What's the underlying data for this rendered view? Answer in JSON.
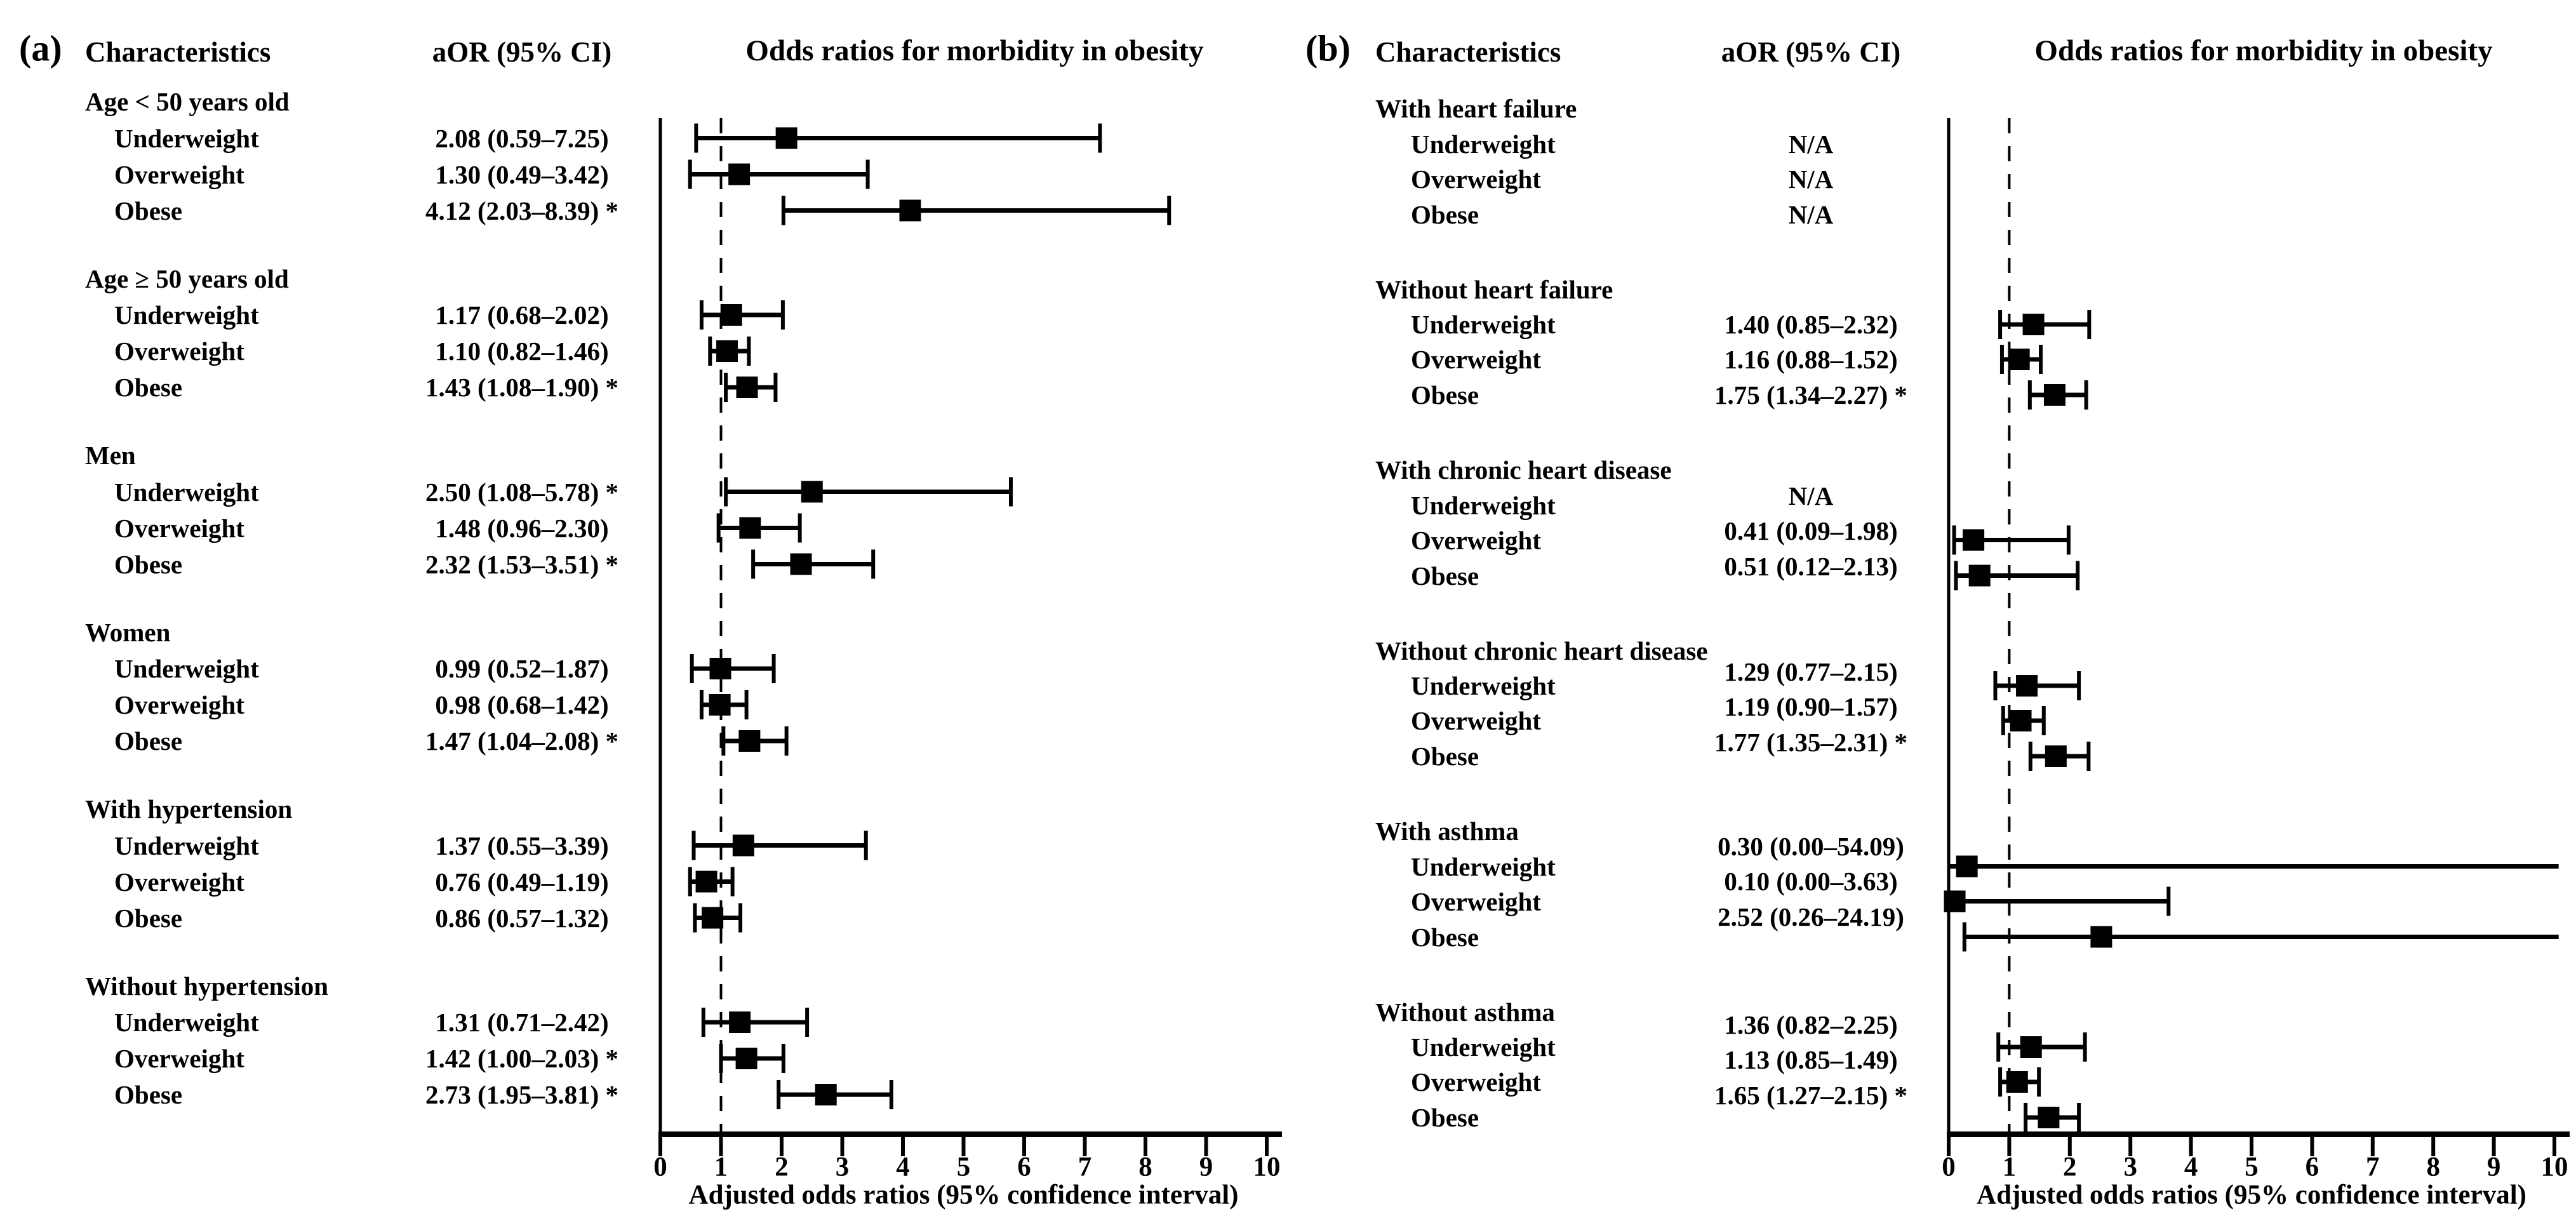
{
  "chart_data": [
    {
      "type": "scatter",
      "panel_label": "(a)",
      "columns": {
        "characteristics": "Characteristics",
        "aor": "aOR (95% CI)"
      },
      "title": "Odds ratios for morbidity in obesity",
      "xlabel": "Adjusted odds ratios (95% confidence interval)",
      "xlim": [
        0,
        10
      ],
      "ticks": [
        0,
        1,
        2,
        3,
        4,
        5,
        6,
        7,
        8,
        9,
        10
      ],
      "ref_line": 1,
      "marker": "black-square",
      "grid": false,
      "groups": [
        {
          "name": "Age < 50 years old",
          "items": [
            {
              "label": "Underweight",
              "aor_text": "2.08 (0.59–7.25)",
              "est": 2.08,
              "lo": 0.59,
              "hi": 7.25,
              "significant": false
            },
            {
              "label": "Overweight",
              "aor_text": "1.30 (0.49–3.42)",
              "est": 1.3,
              "lo": 0.49,
              "hi": 3.42,
              "significant": false
            },
            {
              "label": "Obese",
              "aor_text": "4.12 (2.03–8.39) *",
              "est": 4.12,
              "lo": 2.03,
              "hi": 8.39,
              "significant": true
            }
          ]
        },
        {
          "name": "Age ≥ 50 years old",
          "items": [
            {
              "label": "Underweight",
              "aor_text": "1.17 (0.68–2.02)",
              "est": 1.17,
              "lo": 0.68,
              "hi": 2.02,
              "significant": false
            },
            {
              "label": "Overweight",
              "aor_text": "1.10 (0.82–1.46)",
              "est": 1.1,
              "lo": 0.82,
              "hi": 1.46,
              "significant": false
            },
            {
              "label": "Obese",
              "aor_text": "1.43 (1.08–1.90) *",
              "est": 1.43,
              "lo": 1.08,
              "hi": 1.9,
              "significant": true
            }
          ]
        },
        {
          "name": "Men",
          "items": [
            {
              "label": "Underweight",
              "aor_text": "2.50 (1.08–5.78) *",
              "est": 2.5,
              "lo": 1.08,
              "hi": 5.78,
              "significant": true
            },
            {
              "label": "Overweight",
              "aor_text": "1.48 (0.96–2.30)",
              "est": 1.48,
              "lo": 0.96,
              "hi": 2.3,
              "significant": false
            },
            {
              "label": "Obese",
              "aor_text": "2.32 (1.53–3.51) *",
              "est": 2.32,
              "lo": 1.53,
              "hi": 3.51,
              "significant": true
            }
          ]
        },
        {
          "name": "Women",
          "items": [
            {
              "label": "Underweight",
              "aor_text": "0.99 (0.52–1.87)",
              "est": 0.99,
              "lo": 0.52,
              "hi": 1.87,
              "significant": false
            },
            {
              "label": "Overweight",
              "aor_text": "0.98 (0.68–1.42)",
              "est": 0.98,
              "lo": 0.68,
              "hi": 1.42,
              "significant": false
            },
            {
              "label": "Obese",
              "aor_text": "1.47 (1.04–2.08) *",
              "est": 1.47,
              "lo": 1.04,
              "hi": 2.08,
              "significant": true
            }
          ]
        },
        {
          "name": "With hypertension",
          "items": [
            {
              "label": "Underweight",
              "aor_text": "1.37 (0.55–3.39)",
              "est": 1.37,
              "lo": 0.55,
              "hi": 3.39,
              "significant": false
            },
            {
              "label": "Overweight",
              "aor_text": "0.76 (0.49–1.19)",
              "est": 0.76,
              "lo": 0.49,
              "hi": 1.19,
              "significant": false
            },
            {
              "label": "Obese",
              "aor_text": "0.86 (0.57–1.32)",
              "est": 0.86,
              "lo": 0.57,
              "hi": 1.32,
              "significant": false
            }
          ]
        },
        {
          "name": "Without hypertension",
          "items": [
            {
              "label": "Underweight",
              "aor_text": "1.31 (0.71–2.42)",
              "est": 1.31,
              "lo": 0.71,
              "hi": 2.42,
              "significant": false
            },
            {
              "label": "Overweight",
              "aor_text": "1.42 (1.00–2.03) *",
              "est": 1.42,
              "lo": 1.0,
              "hi": 2.03,
              "significant": true
            },
            {
              "label": "Obese",
              "aor_text": "2.73 (1.95–3.81) *",
              "est": 2.73,
              "lo": 1.95,
              "hi": 3.81,
              "significant": true
            }
          ]
        }
      ]
    },
    {
      "type": "scatter",
      "panel_label": "(b)",
      "columns": {
        "characteristics": "Characteristics",
        "aor": "aOR (95% CI)"
      },
      "title": "Odds ratios for morbidity in obesity",
      "xlabel": "Adjusted odds ratios (95% confidence interval)",
      "xlim": [
        0,
        10
      ],
      "ticks": [
        0,
        1,
        2,
        3,
        4,
        5,
        6,
        7,
        8,
        9,
        10
      ],
      "ref_line": 1,
      "marker": "black-square",
      "grid": false,
      "groups": [
        {
          "name": "With heart failure",
          "items": [
            {
              "label": "Underweight",
              "aor_text": "N/A",
              "est": null,
              "lo": null,
              "hi": null,
              "significant": false
            },
            {
              "label": "Overweight",
              "aor_text": "N/A",
              "est": null,
              "lo": null,
              "hi": null,
              "significant": false
            },
            {
              "label": "Obese",
              "aor_text": "N/A",
              "est": null,
              "lo": null,
              "hi": null,
              "significant": false
            }
          ]
        },
        {
          "name": "Without heart failure",
          "items": [
            {
              "label": "Underweight",
              "aor_text": "1.40 (0.85–2.32)",
              "est": 1.4,
              "lo": 0.85,
              "hi": 2.32,
              "significant": false
            },
            {
              "label": "Overweight",
              "aor_text": "1.16 (0.88–1.52)",
              "est": 1.16,
              "lo": 0.88,
              "hi": 1.52,
              "significant": false
            },
            {
              "label": "Obese",
              "aor_text": "1.75 (1.34–2.27) *",
              "est": 1.75,
              "lo": 1.34,
              "hi": 2.27,
              "significant": true
            }
          ]
        },
        {
          "name": "With chronic heart disease",
          "items": [
            {
              "label": "Underweight",
              "aor_text": "N/A",
              "est": null,
              "lo": null,
              "hi": null,
              "significant": false
            },
            {
              "label": "Overweight",
              "aor_text": "0.41 (0.09–1.98)",
              "est": 0.41,
              "lo": 0.09,
              "hi": 1.98,
              "significant": false
            },
            {
              "label": "Obese",
              "aor_text": "0.51 (0.12–2.13)",
              "est": 0.51,
              "lo": 0.12,
              "hi": 2.13,
              "significant": false
            }
          ]
        },
        {
          "name": "Without chronic heart disease",
          "items": [
            {
              "label": "Underweight",
              "aor_text": "1.29 (0.77–2.15)",
              "est": 1.29,
              "lo": 0.77,
              "hi": 2.15,
              "significant": false
            },
            {
              "label": "Overweight",
              "aor_text": "1.19 (0.90–1.57)",
              "est": 1.19,
              "lo": 0.9,
              "hi": 1.57,
              "significant": false
            },
            {
              "label": "Obese",
              "aor_text": "1.77 (1.35–2.31) *",
              "est": 1.77,
              "lo": 1.35,
              "hi": 2.31,
              "significant": true
            }
          ]
        },
        {
          "name": "With asthma",
          "items": [
            {
              "label": "Underweight",
              "aor_text": "0.30 (0.00–54.09)",
              "est": 0.3,
              "lo": 0.0,
              "hi": 54.09,
              "significant": false
            },
            {
              "label": "Overweight",
              "aor_text": "0.10 (0.00–3.63)",
              "est": 0.1,
              "lo": 0.0,
              "hi": 3.63,
              "significant": false
            },
            {
              "label": "Obese",
              "aor_text": "2.52 (0.26–24.19)",
              "est": 2.52,
              "lo": 0.26,
              "hi": 24.19,
              "significant": false
            }
          ]
        },
        {
          "name": "Without asthma",
          "items": [
            {
              "label": "Underweight",
              "aor_text": "1.36 (0.82–2.25)",
              "est": 1.36,
              "lo": 0.82,
              "hi": 2.25,
              "significant": false
            },
            {
              "label": "Overweight",
              "aor_text": "1.13 (0.85–1.49)",
              "est": 1.13,
              "lo": 0.85,
              "hi": 1.49,
              "significant": false
            },
            {
              "label": "Obese",
              "aor_text": "1.65 (1.27–2.15) *",
              "est": 1.65,
              "lo": 1.27,
              "hi": 2.15,
              "significant": true
            }
          ]
        }
      ]
    }
  ]
}
